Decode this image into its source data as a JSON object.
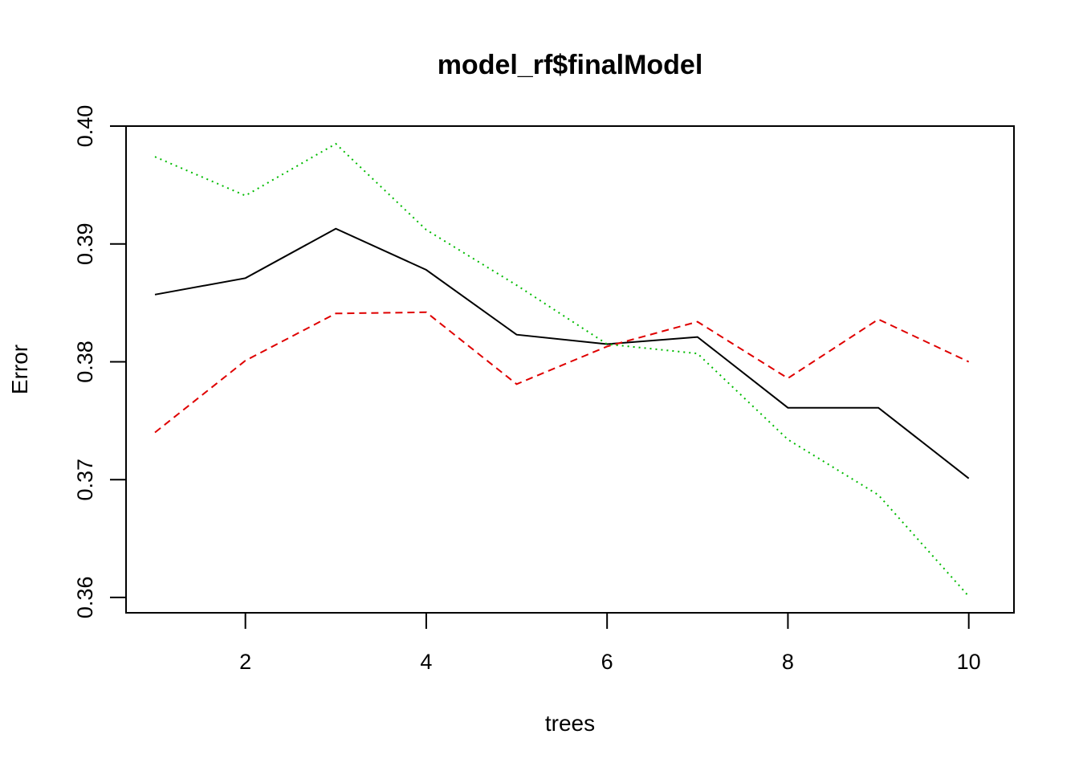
{
  "chart_data": {
    "type": "line",
    "title": "model_rf$finalModel",
    "xlabel": "trees",
    "ylabel": "Error",
    "xlim": [
      0.68,
      10.5
    ],
    "ylim": [
      0.3587,
      0.4
    ],
    "xticks": [
      2,
      4,
      6,
      8,
      10
    ],
    "yticks": [
      0.36,
      0.37,
      0.38,
      0.39,
      0.4
    ],
    "ytick_labels": [
      "0.36",
      "0.37",
      "0.38",
      "0.39",
      "0.40"
    ],
    "grid": false,
    "legend": "none",
    "x": [
      1,
      2,
      3,
      4,
      5,
      6,
      7,
      8,
      9,
      10
    ],
    "series": [
      {
        "color": "#000000",
        "dash": "solid",
        "values": [
          0.3857,
          0.3871,
          0.3913,
          0.3878,
          0.3823,
          0.3815,
          0.3821,
          0.3761,
          0.3761,
          0.3701
        ]
      },
      {
        "color": "#DF0000",
        "dash": "dashed",
        "values": [
          0.374,
          0.3801,
          0.3841,
          0.3842,
          0.3781,
          0.3813,
          0.3834,
          0.3786,
          0.3836,
          0.38
        ]
      },
      {
        "color": "#00BB00",
        "dash": "dotted",
        "values": [
          0.3974,
          0.3941,
          0.3985,
          0.3912,
          0.3865,
          0.3815,
          0.3807,
          0.3734,
          0.3687,
          0.3601
        ]
      }
    ]
  }
}
